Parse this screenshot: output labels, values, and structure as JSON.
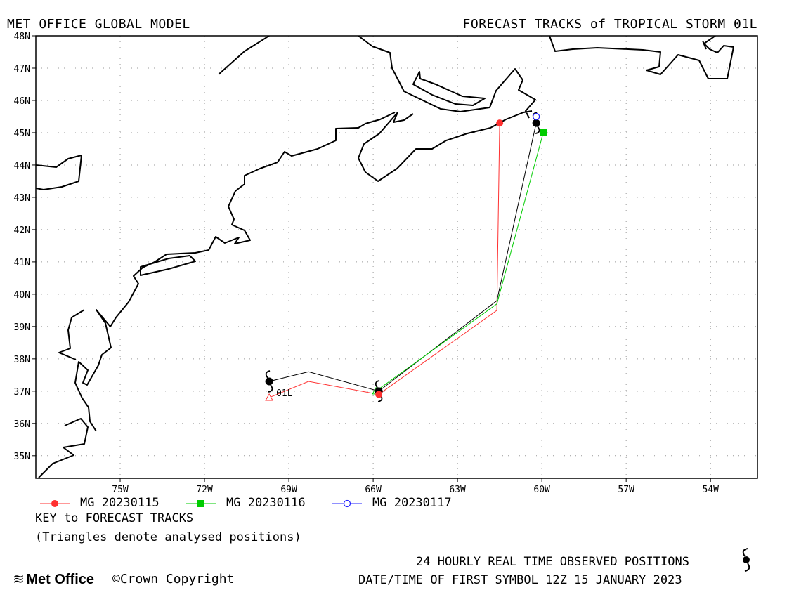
{
  "header": {
    "left_title": "MET OFFICE GLOBAL MODEL",
    "right_title": "FORECAST TRACKS of TROPICAL STORM 01L"
  },
  "map": {
    "lon_range": [
      -78,
      -52.33
    ],
    "lat_range": [
      34.3,
      48
    ],
    "lat_ticks": [
      {
        "value": 35,
        "label": "35N"
      },
      {
        "value": 36,
        "label": "36N"
      },
      {
        "value": 37,
        "label": "37N"
      },
      {
        "value": 38,
        "label": "38N"
      },
      {
        "value": 39,
        "label": "39N"
      },
      {
        "value": 40,
        "label": "40N"
      },
      {
        "value": 41,
        "label": "41N"
      },
      {
        "value": 42,
        "label": "42N"
      },
      {
        "value": 43,
        "label": "43N"
      },
      {
        "value": 44,
        "label": "44N"
      },
      {
        "value": 45,
        "label": "45N"
      },
      {
        "value": 46,
        "label": "46N"
      },
      {
        "value": 47,
        "label": "47N"
      },
      {
        "value": 48,
        "label": "48N"
      }
    ],
    "lon_ticks": [
      {
        "value": -75,
        "label": "75W"
      },
      {
        "value": -72,
        "label": "72W"
      },
      {
        "value": -69,
        "label": "69W"
      },
      {
        "value": -66,
        "label": "66W"
      },
      {
        "value": -63,
        "label": "63W"
      },
      {
        "value": -60,
        "label": "60W"
      },
      {
        "value": -57,
        "label": "57W"
      },
      {
        "value": -54,
        "label": "54W"
      }
    ],
    "grid": true,
    "storm_label": "01L",
    "tracks": [
      {
        "name": "MG 20230115",
        "color": "#ff3030",
        "marker": "circle-filled",
        "points": [
          [
            -69.7,
            36.8
          ],
          [
            -68.3,
            37.3
          ],
          [
            -65.8,
            36.9
          ],
          [
            -61.6,
            39.5
          ],
          [
            -61.5,
            45.3
          ]
        ]
      },
      {
        "name": "MG 20230116",
        "color": "#00cc00",
        "marker": "square-filled",
        "points": [
          [
            -65.9,
            37.0
          ],
          [
            -61.6,
            39.7
          ],
          [
            -59.95,
            45.0
          ]
        ]
      },
      {
        "name": "MG 20230117",
        "color": "#2020ff",
        "marker": "circle-open",
        "points": [
          [
            -60.2,
            45.5
          ]
        ]
      }
    ],
    "observed_track": {
      "color": "#000000",
      "points": [
        [
          -69.7,
          37.3
        ],
        [
          -68.3,
          37.6
        ],
        [
          -65.8,
          37.0
        ],
        [
          -61.6,
          39.8
        ],
        [
          -60.2,
          45.3
        ]
      ]
    }
  },
  "legend": {
    "items": [
      {
        "label": "MG 20230115",
        "color": "#ff3030",
        "marker": "circle-filled"
      },
      {
        "label": "MG 20230116",
        "color": "#00cc00",
        "marker": "square-filled"
      },
      {
        "label": "MG 20230117",
        "color": "#2020ff",
        "marker": "circle-open"
      }
    ],
    "key_title": "KEY to FORECAST TRACKS",
    "key_note": "(Triangles denote analysed positions)"
  },
  "footer": {
    "brand": "Met Office",
    "copyright": "Crown Copyright",
    "observed_label": "24 HOURLY REAL TIME OBSERVED POSITIONS",
    "datetime": "DATE/TIME OF FIRST SYMBOL 12Z 15 JANUARY 2023"
  }
}
